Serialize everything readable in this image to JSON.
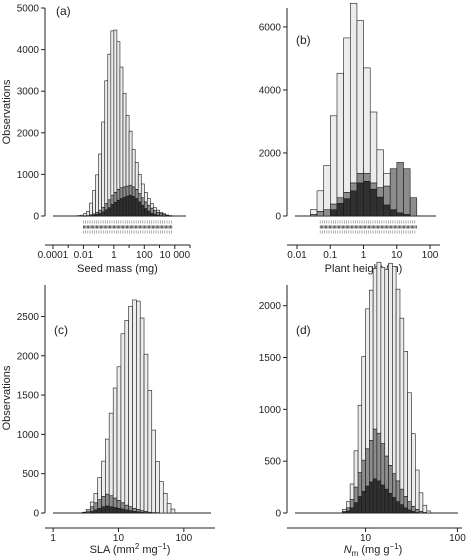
{
  "figure": {
    "background": "#ffffff",
    "ink": "#222222",
    "colors": {
      "light": "#ececec",
      "mid": "#8c8c8c",
      "dark": "#303030",
      "outline": "#1a1a1a"
    }
  },
  "chart_data": [
    {
      "panel_label": "(a)",
      "type": "histogram-stacked",
      "xlabel": "Seed mass (mg)",
      "ylabel": "Observations",
      "x_scale": "log",
      "xlim": [
        3e-05,
        100000
      ],
      "ylim": [
        0,
        5000
      ],
      "y_ticks": [
        0,
        1000,
        2000,
        3000,
        4000,
        5000
      ],
      "x_ticks": [
        {
          "value": 0.0001,
          "label": "0.0001"
        },
        {
          "value": 0.01,
          "label": "0.01"
        },
        {
          "value": 1,
          "label": "1"
        },
        {
          "value": 100,
          "label": "100"
        },
        {
          "value": 10000,
          "label": "10 000"
        }
      ],
      "bin_edges": [
        0.00398,
        0.0063,
        0.01,
        0.0158,
        0.0251,
        0.0398,
        0.063,
        0.1,
        0.158,
        0.251,
        0.398,
        0.63,
        1,
        1.58,
        2.51,
        3.98,
        6.3,
        10,
        15.8,
        25.1,
        39.8,
        63,
        100,
        158,
        251,
        398,
        630,
        1000,
        1580,
        2510,
        3980,
        6300
      ],
      "stack_order": [
        "dark",
        "mid",
        "light"
      ],
      "series": [
        {
          "shade": "light",
          "values": [
            10,
            20,
            50,
            100,
            280,
            560,
            900,
            1350,
            2050,
            2950,
            3500,
            3950,
            3900,
            3550,
            2900,
            2250,
            1700,
            1300,
            900,
            650,
            460,
            330,
            230,
            160,
            110,
            70,
            50,
            30,
            20,
            10,
            5
          ]
        },
        {
          "shade": "mid",
          "values": [
            0,
            0,
            5,
            10,
            20,
            30,
            50,
            80,
            110,
            150,
            190,
            220,
            240,
            260,
            260,
            250,
            240,
            240,
            230,
            220,
            200,
            180,
            160,
            140,
            120,
            90,
            70,
            50,
            30,
            15,
            5
          ]
        },
        {
          "shade": "dark",
          "values": [
            0,
            0,
            0,
            0,
            10,
            20,
            40,
            60,
            100,
            150,
            200,
            280,
            330,
            380,
            420,
            450,
            480,
            500,
            470,
            420,
            340,
            260,
            180,
            120,
            70,
            40,
            20,
            10,
            5,
            0,
            0
          ]
        }
      ],
      "rug": {
        "x_range": [
          0.01,
          7000
        ],
        "y_offsets": [
          6,
          11,
          16
        ]
      }
    },
    {
      "panel_label": "(b)",
      "type": "histogram-stacked",
      "xlabel": "Plant height (m)",
      "ylabel": "",
      "x_scale": "log",
      "xlim": [
        0.005,
        200
      ],
      "ylim": [
        0,
        6600
      ],
      "y_ticks": [
        0,
        2000,
        4000,
        6000
      ],
      "x_ticks": [
        {
          "value": 0.01,
          "label": "0.01"
        },
        {
          "value": 0.1,
          "label": "0.1"
        },
        {
          "value": 1,
          "label": "1"
        },
        {
          "value": 10,
          "label": "10"
        },
        {
          "value": 100,
          "label": "100"
        }
      ],
      "bin_edges": [
        0.0252,
        0.04,
        0.0635,
        0.1006,
        0.1595,
        0.2528,
        0.4007,
        0.6351,
        1.0066,
        1.5954,
        2.5286,
        4.0076,
        6.3516,
        10.0668,
        15.955,
        25.287,
        40.077
      ],
      "stack_order": [
        "dark",
        "mid",
        "light"
      ],
      "series": [
        {
          "shade": "light",
          "values": [
            150,
            650,
            1400,
            2800,
            3950,
            4900,
            5700,
            4850,
            3350,
            2250,
            1200,
            400,
            0,
            0,
            0,
            0
          ]
        },
        {
          "shade": "mid",
          "values": [
            50,
            150,
            200,
            180,
            180,
            200,
            250,
            300,
            250,
            200,
            300,
            600,
            1300,
            1600,
            1450,
            580
          ]
        },
        {
          "shade": "dark",
          "values": [
            0,
            0,
            0,
            200,
            400,
            550,
            800,
            1050,
            1100,
            850,
            600,
            350,
            200,
            100,
            50,
            0
          ]
        }
      ],
      "rug": {
        "x_range": [
          0.05,
          40
        ],
        "y_offsets": [
          6,
          11,
          16
        ]
      }
    },
    {
      "panel_label": "(c)",
      "type": "histogram-stacked",
      "xlabel": "SLA (mm² mg⁻¹)",
      "ylabel": "Observations",
      "x_scale": "log",
      "xlim": [
        0.75,
        300
      ],
      "ylim": [
        0,
        2900
      ],
      "y_ticks": [
        0,
        500,
        1000,
        1500,
        2000,
        2500
      ],
      "x_ticks": [
        {
          "value": 1,
          "label": "1"
        },
        {
          "value": 10,
          "label": "10"
        },
        {
          "value": 100,
          "label": "100"
        }
      ],
      "bin_edges": [
        2.8,
        3.2,
        3.7,
        4.2,
        4.8,
        5.5,
        6.3,
        7.2,
        8.3,
        9.5,
        10.9,
        12.5,
        14.3,
        16.4,
        18.8,
        21.5,
        24.6,
        28.2,
        32.3,
        37,
        42.4,
        48.5,
        55.6,
        63.7,
        73
      ],
      "stack_order": [
        "dark",
        "mid",
        "light"
      ],
      "series": [
        {
          "shade": "light",
          "values": [
            5,
            20,
            60,
            120,
            280,
            450,
            700,
            1050,
            1400,
            1700,
            2150,
            2350,
            2550,
            2650,
            2650,
            2450,
            2000,
            1550,
            1050,
            650,
            400,
            250,
            120,
            50
          ]
        },
        {
          "shade": "mid",
          "values": [
            5,
            20,
            60,
            90,
            110,
            130,
            150,
            140,
            120,
            100,
            80,
            60,
            50,
            40,
            30,
            20,
            15,
            10,
            5,
            5,
            0,
            0,
            0,
            0
          ]
        },
        {
          "shade": "dark",
          "values": [
            0,
            5,
            20,
            40,
            60,
            80,
            90,
            80,
            70,
            60,
            50,
            40,
            30,
            20,
            15,
            10,
            5,
            0,
            0,
            0,
            0,
            0,
            0,
            0
          ]
        }
      ]
    },
    {
      "panel_label": "(d)",
      "type": "histogram-stacked",
      "xlabel": "Nₘ (mg g⁻¹)",
      "ylabel": "",
      "x_scale": "log",
      "xlim": [
        1.4,
        112
      ],
      "ylim": [
        0,
        2200
      ],
      "y_ticks": [
        0,
        500,
        1000,
        1500,
        2000
      ],
      "x_ticks": [
        {
          "value": 10,
          "label": "10"
        },
        {
          "value": 100,
          "label": "100"
        }
      ],
      "bin_edges": [
        5.6,
        6.2,
        6.8,
        7.5,
        8.3,
        9.1,
        10,
        11,
        12.1,
        13.3,
        14.7,
        16.2,
        17.8,
        19.6,
        21.5,
        23.7,
        26.1,
        28.7,
        31.6,
        34.8,
        38.3,
        42.1,
        46.4,
        51
      ],
      "stack_order": [
        "dark",
        "mid",
        "light"
      ],
      "series": [
        {
          "shade": "light",
          "values": [
            20,
            60,
            150,
            350,
            650,
            1000,
            1350,
            1450,
            1550,
            1650,
            1700,
            1800,
            1950,
            2000,
            1850,
            1650,
            1400,
            1050,
            700,
            380,
            180,
            70,
            20
          ]
        },
        {
          "shade": "mid",
          "values": [
            10,
            30,
            80,
            150,
            230,
            300,
            360,
            400,
            480,
            460,
            400,
            320,
            270,
            230,
            200,
            150,
            110,
            80,
            50,
            30,
            15,
            5,
            0
          ]
        },
        {
          "shade": "dark",
          "values": [
            5,
            20,
            50,
            100,
            160,
            210,
            260,
            300,
            330,
            310,
            270,
            230,
            190,
            150,
            110,
            80,
            50,
            30,
            15,
            5,
            0,
            0,
            0
          ]
        }
      ]
    }
  ]
}
